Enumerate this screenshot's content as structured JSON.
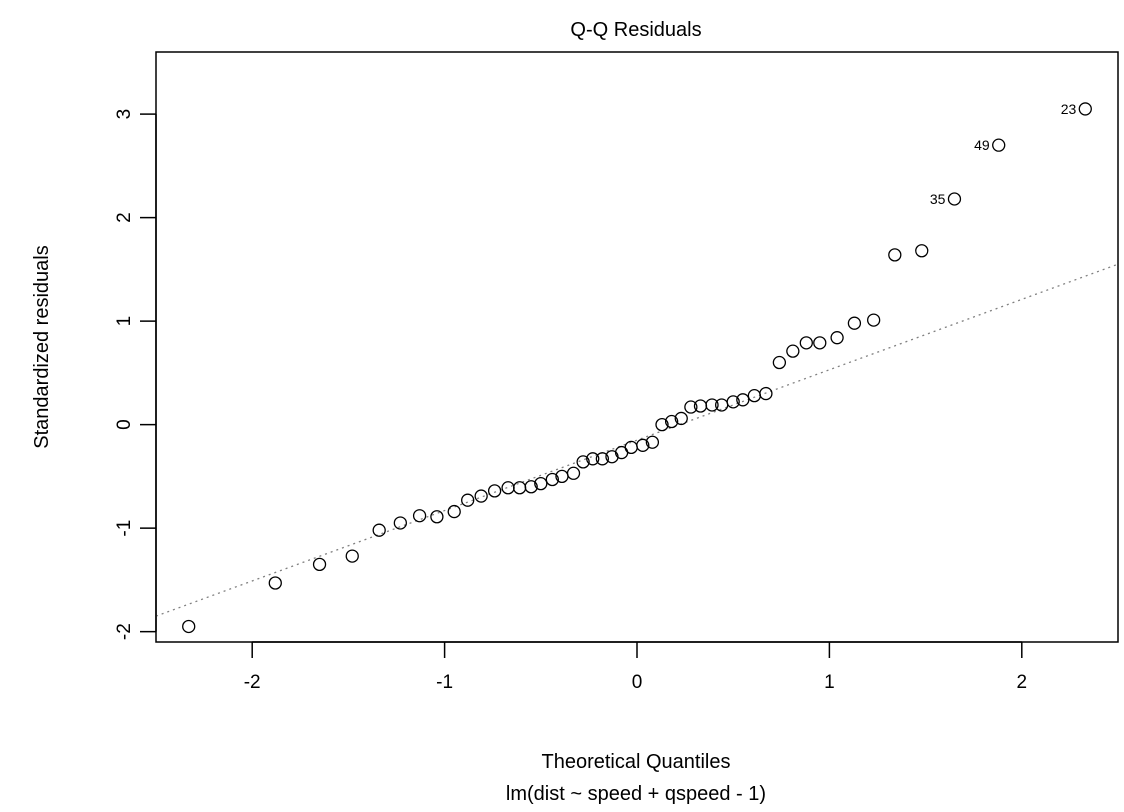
{
  "chart_data": {
    "type": "scatter",
    "title": "Q-Q Residuals",
    "xlabel": "Theoretical Quantiles",
    "xlabel_sub": "lm(dist ~ speed + qspeed - 1)",
    "ylabel": "Standardized residuals",
    "xlim": [
      -2.5,
      2.5
    ],
    "ylim": [
      -2.1,
      3.6
    ],
    "xticks": [
      -2,
      -1,
      0,
      1,
      2
    ],
    "xtick_labels": [
      "-2",
      "-1",
      "0",
      "1",
      "2"
    ],
    "yticks": [
      -2,
      -1,
      0,
      1,
      2,
      3
    ],
    "ytick_labels": [
      "-2",
      "-1",
      "0",
      "1",
      "2",
      "3"
    ],
    "grid": false,
    "reference_line": {
      "style": "dotted",
      "color": "#808080",
      "x": [
        -2.5,
        2.5
      ],
      "y": [
        -1.85,
        1.55
      ]
    },
    "points": [
      {
        "x": -2.33,
        "y": -1.95
      },
      {
        "x": -1.88,
        "y": -1.53
      },
      {
        "x": -1.65,
        "y": -1.35
      },
      {
        "x": -1.48,
        "y": -1.27
      },
      {
        "x": -1.34,
        "y": -1.02
      },
      {
        "x": -1.23,
        "y": -0.95
      },
      {
        "x": -1.13,
        "y": -0.88
      },
      {
        "x": -1.04,
        "y": -0.89
      },
      {
        "x": -0.95,
        "y": -0.84
      },
      {
        "x": -0.88,
        "y": -0.73
      },
      {
        "x": -0.81,
        "y": -0.69
      },
      {
        "x": -0.74,
        "y": -0.64
      },
      {
        "x": -0.67,
        "y": -0.61
      },
      {
        "x": -0.61,
        "y": -0.61
      },
      {
        "x": -0.55,
        "y": -0.6
      },
      {
        "x": -0.5,
        "y": -0.57
      },
      {
        "x": -0.44,
        "y": -0.53
      },
      {
        "x": -0.39,
        "y": -0.5
      },
      {
        "x": -0.33,
        "y": -0.47
      },
      {
        "x": -0.28,
        "y": -0.36
      },
      {
        "x": -0.23,
        "y": -0.33
      },
      {
        "x": -0.18,
        "y": -0.33
      },
      {
        "x": -0.13,
        "y": -0.31
      },
      {
        "x": -0.08,
        "y": -0.27
      },
      {
        "x": -0.03,
        "y": -0.22
      },
      {
        "x": 0.03,
        "y": -0.2
      },
      {
        "x": 0.08,
        "y": -0.17
      },
      {
        "x": 0.13,
        "y": 0.0
      },
      {
        "x": 0.18,
        "y": 0.03
      },
      {
        "x": 0.23,
        "y": 0.06
      },
      {
        "x": 0.28,
        "y": 0.17
      },
      {
        "x": 0.33,
        "y": 0.18
      },
      {
        "x": 0.39,
        "y": 0.19
      },
      {
        "x": 0.44,
        "y": 0.19
      },
      {
        "x": 0.5,
        "y": 0.22
      },
      {
        "x": 0.55,
        "y": 0.24
      },
      {
        "x": 0.61,
        "y": 0.28
      },
      {
        "x": 0.67,
        "y": 0.3
      },
      {
        "x": 0.74,
        "y": 0.6
      },
      {
        "x": 0.81,
        "y": 0.71
      },
      {
        "x": 0.88,
        "y": 0.79
      },
      {
        "x": 0.95,
        "y": 0.79
      },
      {
        "x": 1.04,
        "y": 0.84
      },
      {
        "x": 1.13,
        "y": 0.98
      },
      {
        "x": 1.23,
        "y": 1.01
      },
      {
        "x": 1.34,
        "y": 1.64
      },
      {
        "x": 1.48,
        "y": 1.68
      },
      {
        "x": 1.65,
        "y": 2.18,
        "label": "35"
      },
      {
        "x": 1.88,
        "y": 2.7,
        "label": "49"
      },
      {
        "x": 2.33,
        "y": 3.05,
        "label": "23"
      }
    ]
  }
}
